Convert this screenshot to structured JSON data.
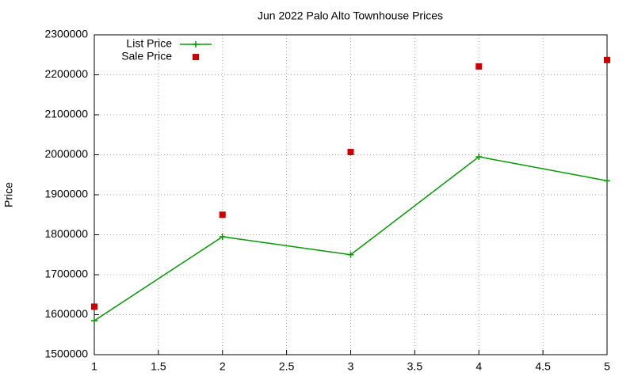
{
  "chart_data": {
    "type": "line",
    "title": "Jun 2022 Palo Alto Townhouse Prices",
    "y_label": "Price",
    "x": [
      1,
      2,
      3,
      4,
      5
    ],
    "series": [
      {
        "name": "List Price",
        "color": "#009900",
        "line": true,
        "marker": "plus",
        "values": [
          1585000,
          1795000,
          1750000,
          1995000,
          1935000
        ]
      },
      {
        "name": "Sale Price",
        "color": "#cc0000",
        "line": false,
        "marker": "square",
        "values": [
          1620000,
          1850000,
          2007000,
          2221000,
          2237000
        ]
      }
    ],
    "xlim": [
      1,
      5
    ],
    "xticks": [
      1,
      1.5,
      2,
      2.5,
      3,
      3.5,
      4,
      4.5,
      5
    ],
    "ylim": [
      1500000,
      2300000
    ],
    "yticks": [
      1500000,
      1600000,
      1700000,
      1800000,
      1900000,
      2000000,
      2100000,
      2200000,
      2300000
    ],
    "grid": true,
    "legend": "top-left"
  }
}
